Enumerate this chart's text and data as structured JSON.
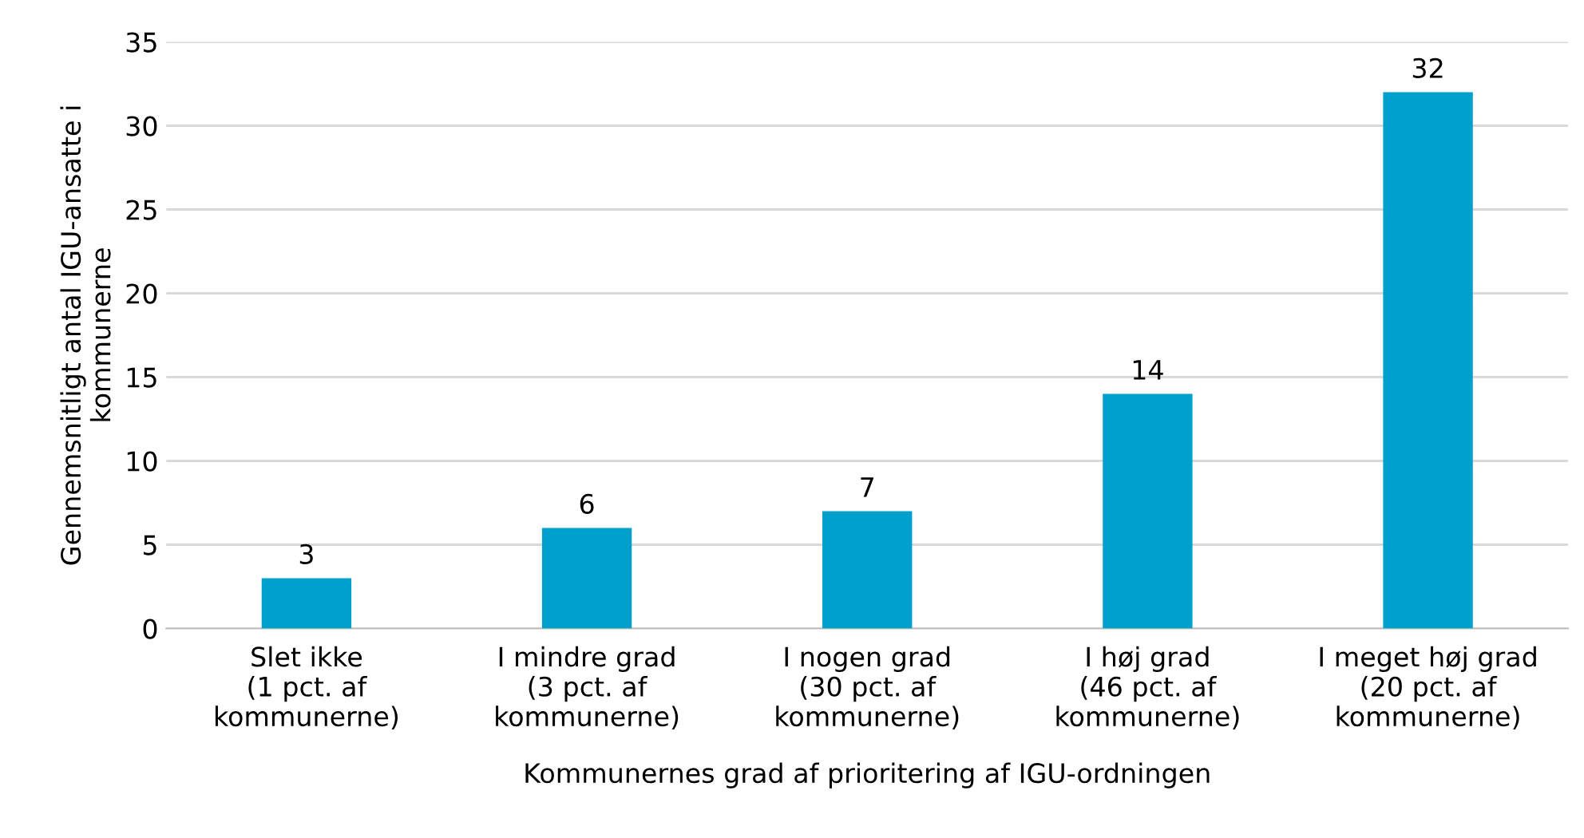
{
  "chart_data": {
    "type": "bar",
    "xlabel": "Kommunernes grad af prioritering af IGU-ordningen",
    "ylabel": "Gennemsnitligt antal IGU-ansatte i\nkommunerne",
    "categories": [
      "Slet ikke\n(1 pct. af\nkommunerne)",
      "I mindre grad\n(3 pct. af\nkommunerne)",
      "I nogen grad\n(30 pct. af\nkommunerne)",
      "I høj grad\n(46 pct. af\nkommunerne)",
      "I meget høj grad\n(20 pct. af\nkommunerne)"
    ],
    "values": [
      3,
      6,
      7,
      14,
      32
    ],
    "color": "#00a0cc",
    "ylim": [
      0,
      35
    ],
    "yticks": [
      0,
      5,
      10,
      15,
      20,
      25,
      30,
      35
    ],
    "grid": "y",
    "data_labels": true
  }
}
